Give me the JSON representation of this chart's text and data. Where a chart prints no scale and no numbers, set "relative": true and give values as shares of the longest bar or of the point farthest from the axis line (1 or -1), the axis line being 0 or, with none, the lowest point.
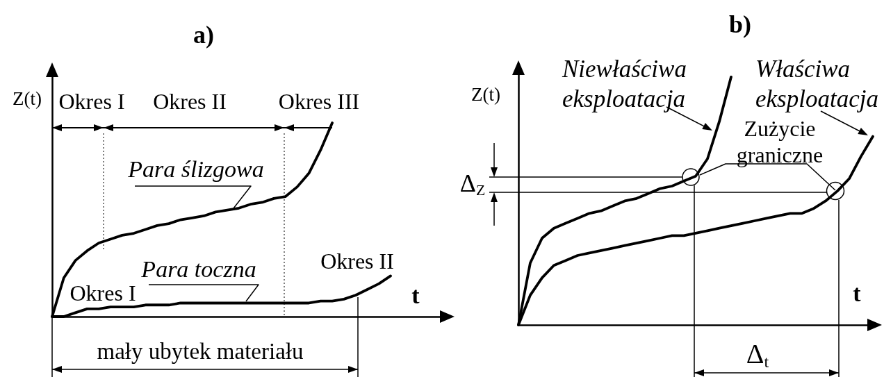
{
  "chart_data": [
    {
      "type": "line",
      "title": "a)",
      "xlabel": "t",
      "ylabel": "Z(t)",
      "relative": true,
      "marker": "none",
      "categories": [
        null,
        null,
        null,
        null,
        null,
        null,
        null,
        null,
        null,
        null,
        null,
        null,
        null,
        null,
        null,
        null,
        null,
        null,
        null,
        null,
        null,
        null,
        null,
        null,
        null,
        null,
        null,
        null,
        null,
        null,
        null,
        null,
        null,
        null,
        null
      ],
      "series": [
        {
          "name": "Para ślizgowa",
          "color": "#000000",
          "values": [
            0,
            0.2,
            0.29,
            0.34,
            0.38,
            0.4,
            0.42,
            0.43,
            0.45,
            0.47,
            0.48,
            0.5,
            0.51,
            0.52,
            0.54,
            0.55,
            0.56,
            0.58,
            0.59,
            0.61,
            0.62,
            0.67,
            0.74,
            0.86,
            1,
            null,
            null,
            null,
            null,
            null,
            null,
            null,
            null,
            null,
            null
          ]
        },
        {
          "name": "Para toczna",
          "color": "#000000",
          "values": [
            0,
            0,
            0.02,
            0.04,
            0.04,
            0.05,
            0.05,
            0.05,
            0.06,
            0.06,
            0.06,
            0.07,
            0.07,
            0.07,
            0.07,
            0.07,
            0.07,
            0.07,
            0.07,
            0.07,
            0.07,
            0.07,
            0.07,
            0.08,
            0.08,
            0.09,
            0.11,
            0.14,
            0.17,
            0.21,
            null,
            null,
            null,
            null,
            null
          ]
        }
      ],
      "annotations": [
        "Okres I",
        "Okres II",
        "Okres III",
        "Okres I",
        "Okres II",
        "mały ubytek materiału"
      ]
    },
    {
      "type": "line",
      "title": "b)",
      "xlabel": "t",
      "ylabel": "Z(t)",
      "relative": true,
      "marker": "none",
      "categories": [
        null,
        null,
        null,
        null,
        null,
        null,
        null,
        null,
        null,
        null,
        null,
        null,
        null,
        null,
        null,
        null,
        null,
        null,
        null,
        null,
        null,
        null,
        null,
        null,
        null,
        null,
        null,
        null,
        null,
        null,
        null
      ],
      "series": [
        {
          "name": "Niewłaściwa eksploatacja",
          "color": "#000000",
          "values": [
            0,
            0.25,
            0.35,
            0.39,
            0.41,
            0.43,
            0.45,
            0.46,
            0.48,
            0.5,
            0.51,
            0.53,
            0.55,
            0.56,
            0.58,
            0.6,
            0.67,
            0.82,
            1,
            null,
            null,
            null,
            null,
            null,
            null,
            null,
            null,
            null,
            null,
            null,
            null
          ]
        },
        {
          "name": "Właściwa eksploatacja",
          "color": "#000000",
          "values": [
            0,
            0.12,
            0.19,
            0.24,
            0.26,
            0.28,
            0.29,
            0.3,
            0.31,
            0.32,
            0.33,
            0.34,
            0.35,
            0.36,
            0.36,
            0.37,
            0.38,
            0.39,
            0.4,
            0.41,
            0.42,
            0.43,
            0.44,
            0.45,
            0.45,
            0.47,
            0.5,
            0.54,
            0.59,
            0.68,
            0.76
          ]
        }
      ],
      "annotations": [
        "Zużycie graniczne",
        "Δ$_{Z}$",
        "Δ$_{t}$"
      ]
    }
  ]
}
